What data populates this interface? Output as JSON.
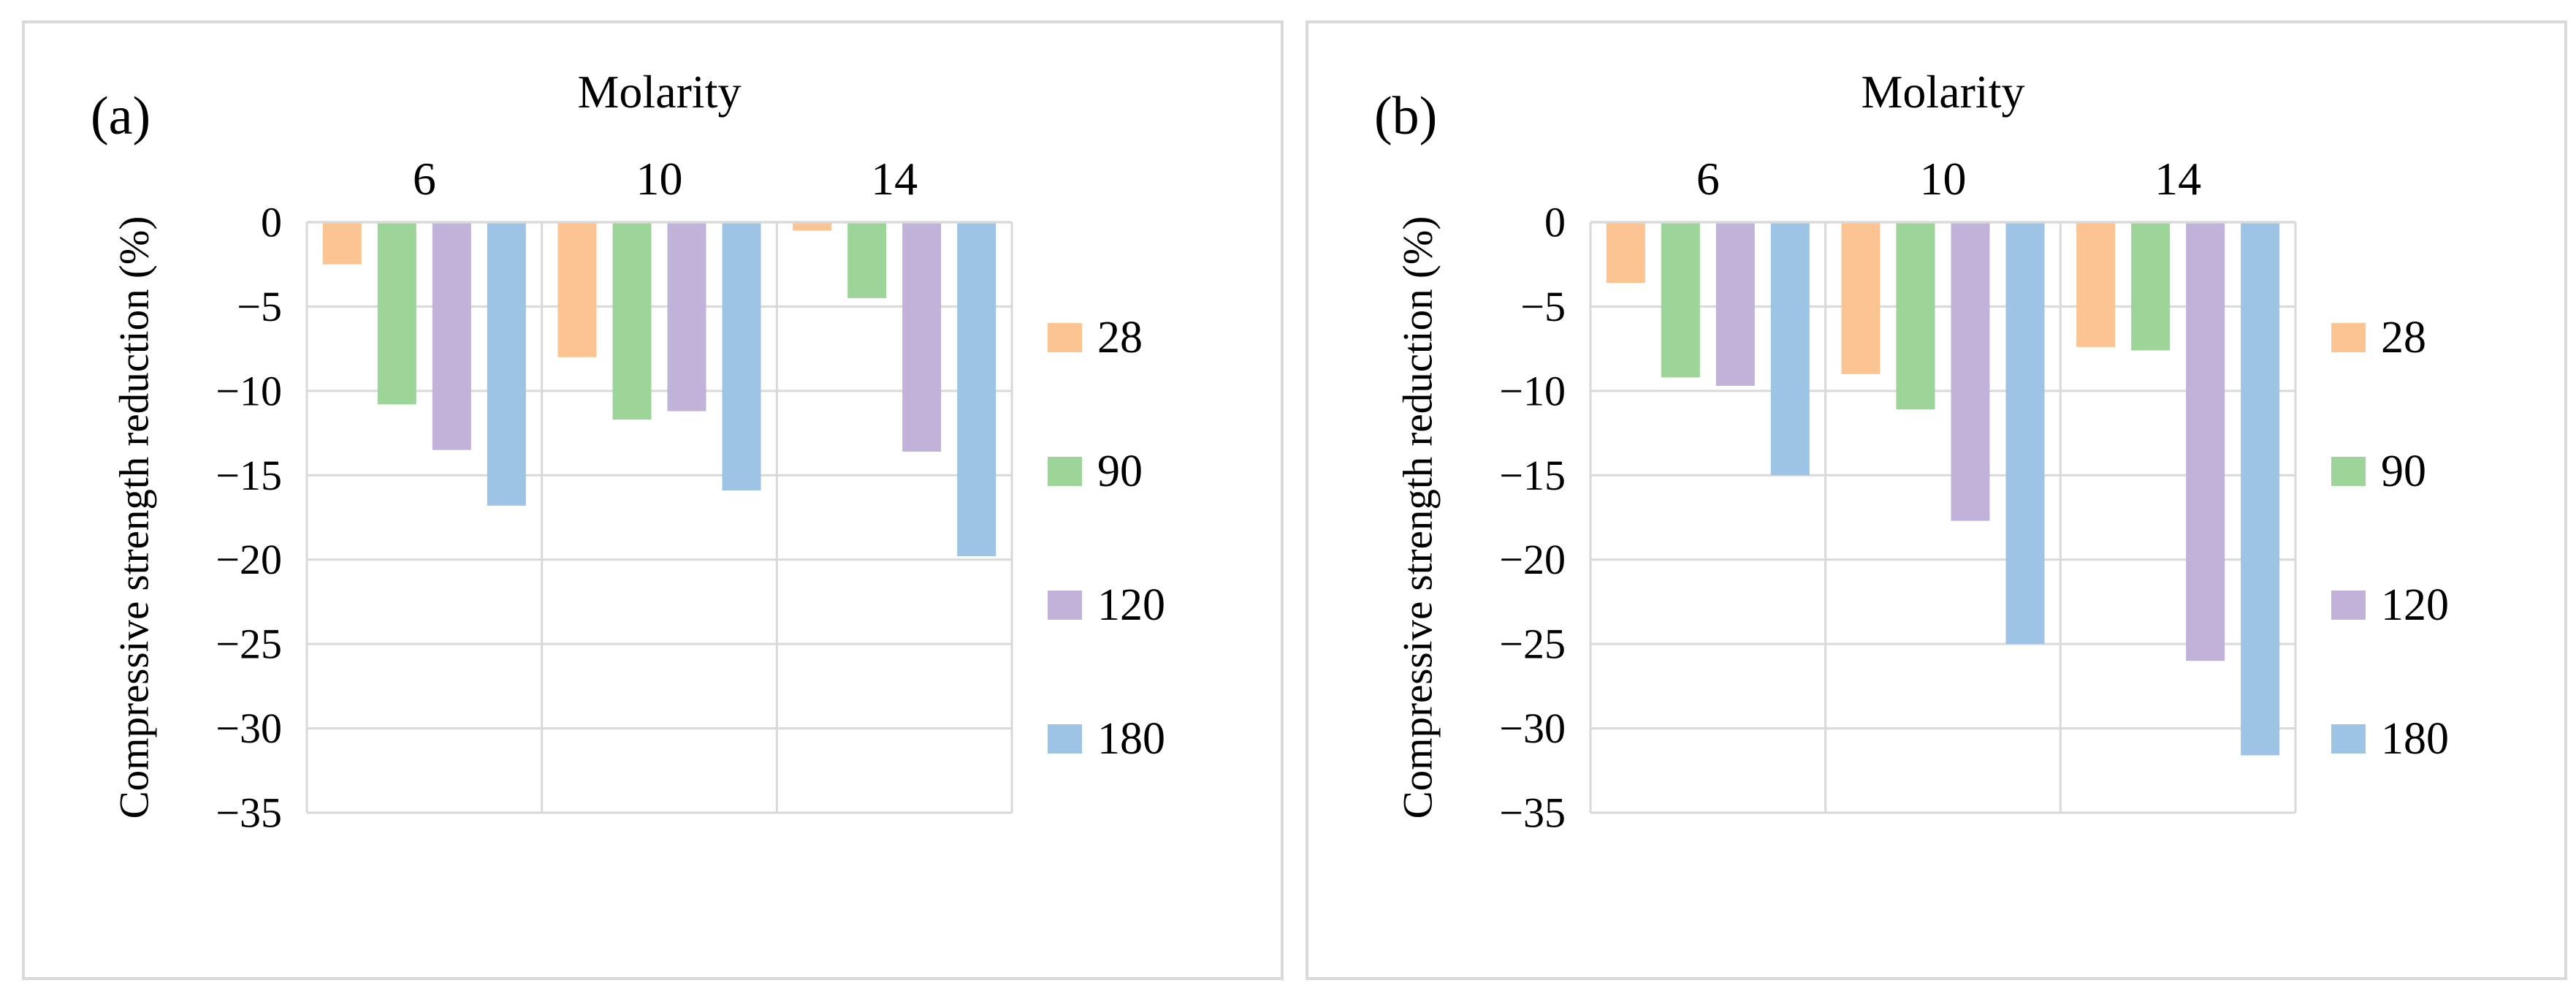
{
  "figure": {
    "background": "#ffffff",
    "panel_border_color": "#d9d9d9",
    "gridline_color": "#d9d9d9",
    "text_color": "#000000"
  },
  "chart_data": [
    {
      "type": "bar",
      "panel_label": "(a)",
      "title": "Molarity",
      "xlabel": "Molarity",
      "ylabel": "Compressive strength reduction (%)",
      "categories": [
        "6",
        "10",
        "14"
      ],
      "series": [
        {
          "name": "28",
          "color": "#FBC492",
          "values": [
            -2.5,
            -8.0,
            -0.5
          ]
        },
        {
          "name": "90",
          "color": "#9DD598",
          "values": [
            -10.8,
            -11.7,
            -4.5
          ]
        },
        {
          "name": "120",
          "color": "#C1B2D9",
          "values": [
            -13.5,
            -11.2,
            -13.6
          ]
        },
        {
          "name": "180",
          "color": "#9DC3E5",
          "values": [
            -16.8,
            -15.9,
            -19.8
          ]
        }
      ],
      "ylim": [
        0,
        -35
      ],
      "ytick_step": 5,
      "ytick_labels": [
        "0",
        "−5",
        "−10",
        "−15",
        "−20",
        "−25",
        "−30",
        "−35"
      ],
      "grid": true,
      "legend_position": "right"
    },
    {
      "type": "bar",
      "panel_label": "(b)",
      "title": "Molarity",
      "xlabel": "Molarity",
      "ylabel": "Compressive strength reduction (%)",
      "categories": [
        "6",
        "10",
        "14"
      ],
      "series": [
        {
          "name": "28",
          "color": "#FBC492",
          "values": [
            -3.6,
            -9.0,
            -7.4
          ]
        },
        {
          "name": "90",
          "color": "#9DD598",
          "values": [
            -9.2,
            -11.1,
            -7.6
          ]
        },
        {
          "name": "120",
          "color": "#C1B2D9",
          "values": [
            -9.7,
            -17.7,
            -26.0
          ]
        },
        {
          "name": "180",
          "color": "#9DC3E5",
          "values": [
            -15.0,
            -25.0,
            -31.6
          ]
        }
      ],
      "ylim": [
        0,
        -35
      ],
      "ytick_step": 5,
      "ytick_labels": [
        "0",
        "−5",
        "−10",
        "−15",
        "−20",
        "−25",
        "−30",
        "−35"
      ],
      "grid": true,
      "legend_position": "right"
    }
  ]
}
